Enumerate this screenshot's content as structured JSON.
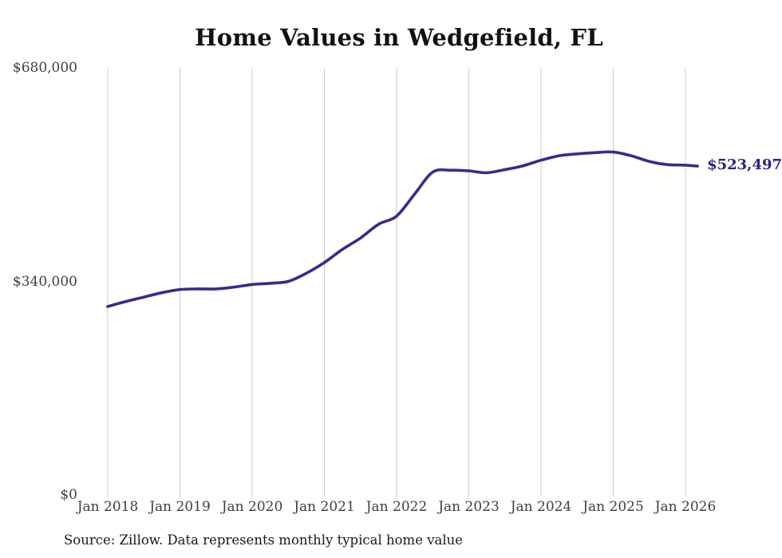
{
  "chart": {
    "title": "Home Values in Wedgefield, FL",
    "source": "Source: Zillow. Data represents monthly typical home value",
    "end_label": "$523,497",
    "colors": {
      "line": "#332d90",
      "end_label": "#2a2380",
      "gridline": "#cccccc",
      "tick_text": "#3f3f3f",
      "title_text": "#111111",
      "source_text": "#1a1a1a"
    }
  },
  "chart_data": {
    "type": "line",
    "title": "Home Values in Wedgefield, FL",
    "xlabel": "",
    "ylabel": "",
    "ylim": [
      0,
      680000
    ],
    "xlim_years": [
      2018,
      2026.35
    ],
    "grid": "vertical-only",
    "legend": "none",
    "y_ticks": [
      {
        "label": "$0",
        "value": 0
      },
      {
        "label": "$340,000",
        "value": 340000
      },
      {
        "label": "$680,000",
        "value": 680000
      }
    ],
    "x_ticks": [
      {
        "label": "Jan 2018",
        "year": 2018
      },
      {
        "label": "Jan 2019",
        "year": 2019
      },
      {
        "label": "Jan 2020",
        "year": 2020
      },
      {
        "label": "Jan 2021",
        "year": 2021
      },
      {
        "label": "Jan 2022",
        "year": 2022
      },
      {
        "label": "Jan 2023",
        "year": 2023
      },
      {
        "label": "Jan 2024",
        "year": 2024
      },
      {
        "label": "Jan 2025",
        "year": 2025
      },
      {
        "label": "Jan 2026",
        "year": 2026
      }
    ],
    "series": [
      {
        "name": "Monthly typical home value",
        "points": [
          [
            "2018-01",
            300000
          ],
          [
            "2018-04",
            308000
          ],
          [
            "2018-07",
            315000
          ],
          [
            "2018-10",
            322000
          ],
          [
            "2019-01",
            327000
          ],
          [
            "2019-04",
            328000
          ],
          [
            "2019-07",
            328000
          ],
          [
            "2019-10",
            331000
          ],
          [
            "2020-01",
            335000
          ],
          [
            "2020-04",
            337000
          ],
          [
            "2020-07",
            340000
          ],
          [
            "2020-10",
            353000
          ],
          [
            "2021-01",
            370000
          ],
          [
            "2021-04",
            391000
          ],
          [
            "2021-07",
            409000
          ],
          [
            "2021-10",
            431000
          ],
          [
            "2022-01",
            444000
          ],
          [
            "2022-04",
            479000
          ],
          [
            "2022-07",
            514000
          ],
          [
            "2022-10",
            517000
          ],
          [
            "2023-01",
            516000
          ],
          [
            "2023-04",
            513000
          ],
          [
            "2023-07",
            518000
          ],
          [
            "2023-10",
            524000
          ],
          [
            "2024-01",
            533000
          ],
          [
            "2024-04",
            540000
          ],
          [
            "2024-07",
            543000
          ],
          [
            "2024-10",
            545000
          ],
          [
            "2025-01",
            546000
          ],
          [
            "2025-04",
            540000
          ],
          [
            "2025-07",
            531000
          ],
          [
            "2025-10",
            526000
          ],
          [
            "2026-01",
            525000
          ],
          [
            "2026-03",
            523497
          ]
        ]
      }
    ],
    "end_annotation": {
      "label": "$523,497",
      "date": "2026-03",
      "value": 523497
    }
  }
}
